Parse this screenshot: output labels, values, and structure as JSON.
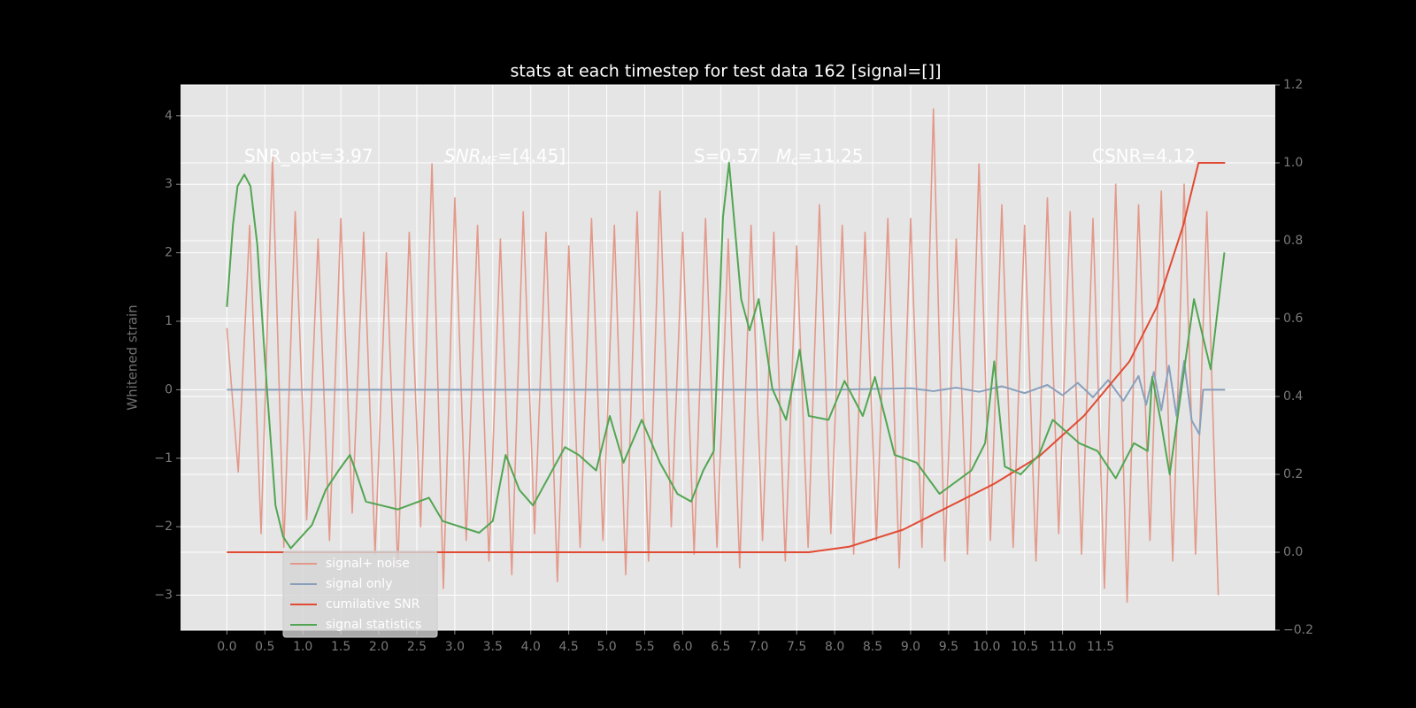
{
  "chart_data": {
    "type": "line",
    "title": "stats at each timestep for test data 162 [signal=[]]",
    "ylabel": "Whitened strain",
    "xlim": [
      -0.61,
      13.8
    ],
    "ylim": [
      -3.51,
      4.45
    ],
    "y2lim": [
      -0.2,
      1.2
    ],
    "xticks": [
      {
        "value": 0,
        "label": "0.0"
      },
      0.5,
      {
        "value": 1,
        "label": "1.0"
      },
      1.5,
      {
        "value": 2,
        "label": "2.0"
      },
      2.5,
      {
        "value": 3,
        "label": "3.0"
      },
      3.5,
      {
        "value": 4,
        "label": "4.0"
      },
      4.5,
      {
        "value": 5,
        "label": "5.0"
      },
      5.5,
      {
        "value": 6,
        "label": "6.0"
      },
      6.5,
      {
        "value": 7,
        "label": "7.0"
      },
      7.5,
      {
        "value": 8,
        "label": "8.0"
      },
      8.5,
      {
        "value": 9,
        "label": "9.0"
      },
      9.5,
      {
        "value": 10,
        "label": "10.0"
      },
      10.5,
      {
        "value": 11,
        "label": "11.0"
      },
      11.5
    ],
    "yticks": [
      {
        "value": -3,
        "label": "−3"
      },
      {
        "value": -2,
        "label": "−2"
      },
      {
        "value": -1,
        "label": "−1"
      },
      0,
      1,
      2,
      3,
      4
    ],
    "y2ticks": [
      {
        "value": -0.2,
        "label": "−0.2"
      },
      {
        "value": 0,
        "label": "0.0"
      },
      0.2,
      0.4,
      0.6,
      0.8,
      {
        "value": 1,
        "label": "1.0"
      },
      1.2
    ],
    "grid": true,
    "legend_loc": "lower left",
    "annotations": [
      {
        "text": "SNR_opt=3.97"
      },
      {
        "text": "SNR",
        "sub": "MF",
        "rest": "=[4.45]"
      },
      {
        "text": "S=0.57"
      },
      {
        "text": "M",
        "sub": "c",
        "rest": "=11.25"
      },
      {
        "text": "CSNR=4.12"
      }
    ],
    "series": [
      {
        "name": "signal+ noise",
        "color": "#e3998a",
        "axis": "y",
        "x": [
          0,
          0.15,
          0.3,
          0.45,
          0.6,
          0.75,
          0.9,
          1.05,
          1.2,
          1.35,
          1.5,
          1.65,
          1.8,
          1.95,
          2.1,
          2.25,
          2.4,
          2.55,
          2.7,
          2.85,
          3,
          3.15,
          3.3,
          3.45,
          3.6,
          3.75,
          3.9,
          4.05,
          4.2,
          4.35,
          4.5,
          4.65,
          4.8,
          4.95,
          5.1,
          5.25,
          5.4,
          5.55,
          5.7,
          5.85,
          6,
          6.15,
          6.3,
          6.45,
          6.6,
          6.75,
          6.9,
          7.05,
          7.2,
          7.35,
          7.5,
          7.65,
          7.8,
          7.95,
          8.1,
          8.25,
          8.4,
          8.55,
          8.7,
          8.85,
          9,
          9.15,
          9.3,
          9.45,
          9.6,
          9.75,
          9.9,
          10.05,
          10.2,
          10.35,
          10.5,
          10.65,
          10.8,
          10.95,
          11.1,
          11.25,
          11.4,
          11.55,
          11.7,
          11.85,
          12,
          12.15,
          12.3,
          12.45,
          12.6,
          12.75,
          12.9,
          13.05
        ],
        "values": [
          0.9,
          -1.2,
          2.4,
          -2.1,
          3.4,
          -2.3,
          2.6,
          -1.9,
          2.2,
          -2.2,
          2.5,
          -1.8,
          2.3,
          -2.4,
          2.0,
          -2.6,
          2.3,
          -2.0,
          3.3,
          -2.9,
          2.8,
          -2.2,
          2.4,
          -2.5,
          2.2,
          -2.7,
          2.6,
          -2.1,
          2.3,
          -2.8,
          2.1,
          -2.3,
          2.5,
          -2.2,
          2.4,
          -2.7,
          2.6,
          -2.5,
          2.9,
          -2.0,
          2.3,
          -2.4,
          2.5,
          -2.3,
          2.2,
          -2.6,
          2.4,
          -2.2,
          2.3,
          -2.5,
          2.1,
          -2.3,
          2.7,
          -2.1,
          2.4,
          -2.4,
          2.3,
          -2.2,
          2.5,
          -2.6,
          2.5,
          -2.3,
          4.1,
          -2.5,
          2.2,
          -2.4,
          3.3,
          -2.2,
          2.7,
          -2.3,
          2.4,
          -2.5,
          2.8,
          -2.1,
          2.6,
          -2.4,
          2.5,
          -2.9,
          3.0,
          -3.1,
          2.7,
          -2.2,
          2.9,
          -2.5,
          3.0,
          -2.4,
          2.6,
          -3.0
        ]
      },
      {
        "name": "signal only",
        "color": "#8a9fbb",
        "axis": "y",
        "x": [
          0,
          8.0,
          9.0,
          9.3,
          9.6,
          9.9,
          10.2,
          10.5,
          10.8,
          11.0,
          11.2,
          11.4,
          11.6,
          11.8,
          12.0,
          12.1,
          12.2,
          12.3,
          12.4,
          12.5,
          12.6,
          12.7,
          12.8,
          12.85,
          13.14
        ],
        "values": [
          0,
          0,
          0.02,
          -0.02,
          0.03,
          -0.03,
          0.05,
          -0.05,
          0.07,
          -0.08,
          0.1,
          -0.11,
          0.14,
          -0.16,
          0.2,
          -0.22,
          0.26,
          -0.3,
          0.35,
          -0.38,
          0.42,
          -0.45,
          -0.65,
          0,
          0
        ]
      },
      {
        "name": "cumilative SNR",
        "color": "#e24a33",
        "axis": "y2",
        "x": [
          0,
          7.66,
          8.19,
          8.9,
          10.1,
          10.69,
          11.28,
          11.88,
          12.24,
          12.59,
          12.79,
          13.14
        ],
        "values": [
          0,
          0,
          0.014,
          0.058,
          0.176,
          0.246,
          0.35,
          0.49,
          0.63,
          0.84,
          1.0,
          1.0
        ]
      },
      {
        "name": "signal statistics",
        "color": "#52a552",
        "axis": "y2",
        "x": [
          0,
          0.08,
          0.14,
          0.23,
          0.31,
          0.4,
          0.52,
          0.64,
          0.74,
          0.84,
          1.12,
          1.3,
          1.47,
          1.62,
          1.71,
          1.83,
          2.25,
          2.66,
          2.84,
          3.32,
          3.5,
          3.67,
          3.85,
          4.03,
          4.45,
          4.63,
          4.86,
          5.04,
          5.22,
          5.46,
          5.7,
          5.93,
          6.11,
          6.27,
          6.41,
          6.53,
          6.61,
          6.77,
          6.88,
          7.0,
          7.18,
          7.36,
          7.54,
          7.66,
          7.92,
          8.13,
          8.37,
          8.53,
          8.79,
          9.08,
          9.38,
          9.8,
          9.98,
          10.1,
          10.24,
          10.45,
          10.69,
          10.87,
          11.22,
          11.46,
          11.7,
          11.94,
          12.12,
          12.18,
          12.29,
          12.41,
          12.73,
          12.95,
          13.13
        ],
        "values": [
          0.63,
          0.84,
          0.94,
          0.97,
          0.94,
          0.79,
          0.44,
          0.12,
          0.04,
          0.01,
          0.07,
          0.16,
          0.21,
          0.25,
          0.2,
          0.13,
          0.11,
          0.14,
          0.08,
          0.05,
          0.08,
          0.25,
          0.16,
          0.12,
          0.27,
          0.25,
          0.21,
          0.35,
          0.23,
          0.34,
          0.23,
          0.15,
          0.13,
          0.21,
          0.26,
          0.86,
          1.0,
          0.65,
          0.57,
          0.65,
          0.42,
          0.34,
          0.52,
          0.35,
          0.34,
          0.44,
          0.35,
          0.45,
          0.25,
          0.23,
          0.15,
          0.21,
          0.28,
          0.49,
          0.22,
          0.2,
          0.25,
          0.34,
          0.28,
          0.26,
          0.19,
          0.28,
          0.26,
          0.45,
          0.34,
          0.2,
          0.65,
          0.47,
          0.77
        ]
      }
    ]
  }
}
